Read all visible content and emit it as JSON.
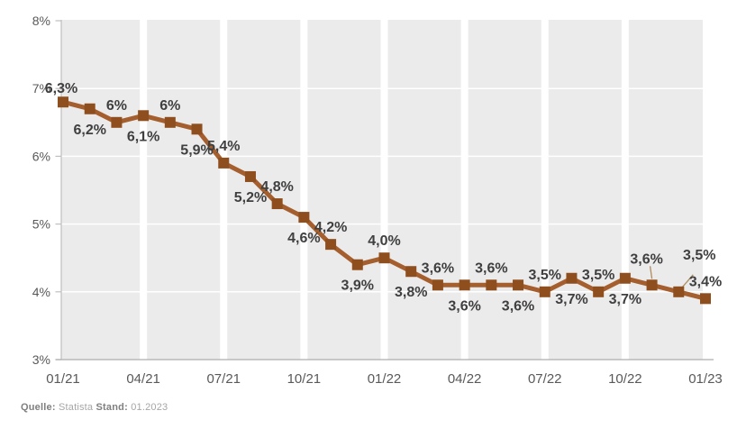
{
  "chart_data": {
    "type": "line",
    "title": "",
    "legend": "none",
    "grid": "white gridlines on light-gray plot area, white vertical stripes at quarter ticks",
    "x_tick_labels": [
      "01/21",
      "04/21",
      "07/21",
      "10/21",
      "01/22",
      "04/22",
      "07/22",
      "10/22",
      "01/23"
    ],
    "y_tick_labels": [
      "8%",
      "7%",
      "6%",
      "5%",
      "4%",
      "3%"
    ],
    "y_min": 3,
    "y_max": 8,
    "n_points": 25,
    "values": [
      6.3,
      6.2,
      6.0,
      6.1,
      6.0,
      5.9,
      5.4,
      5.2,
      4.8,
      4.6,
      4.2,
      3.9,
      4.0,
      3.8,
      3.6,
      3.6,
      3.6,
      3.6,
      3.5,
      3.7,
      3.5,
      3.7,
      3.6,
      3.5,
      3.4
    ],
    "point_labels": [
      "6,3%",
      "6,2%",
      "6%",
      "6,1%",
      "6%",
      "5,9%",
      "5,4%",
      "5,2%",
      "4,8%",
      "4,6%",
      "4,2%",
      "3,9%",
      "4,0%",
      "3,8%",
      "3,6%",
      "3,6%",
      "3,6%",
      "3,6%",
      "3,5%",
      "3,7%",
      "3,5%",
      "3,7%",
      "3,6%",
      "3,5%",
      "3,4%"
    ],
    "label_sides_rule": "even index above, odd index below; points 22 and 23 labeled above with thin leader lines",
    "render_value_offset": 0.5,
    "colors": {
      "line": "#A55E2D",
      "marker": "#8F4E1D",
      "leader": "#B08B5E",
      "plot_bg": "#EBEBEB",
      "stripe": "#FFFFFF",
      "gridline": "#FFFFFF",
      "axis_line": "#BFBFBF",
      "x_axis_line": "#ADADAD",
      "label_text": "#3F3F3F",
      "axis_text": "#595959"
    }
  },
  "footer": {
    "source_label": "Quelle:",
    "source_value": "Statista",
    "stand_label": "Stand:",
    "stand_value": "01.2023"
  }
}
